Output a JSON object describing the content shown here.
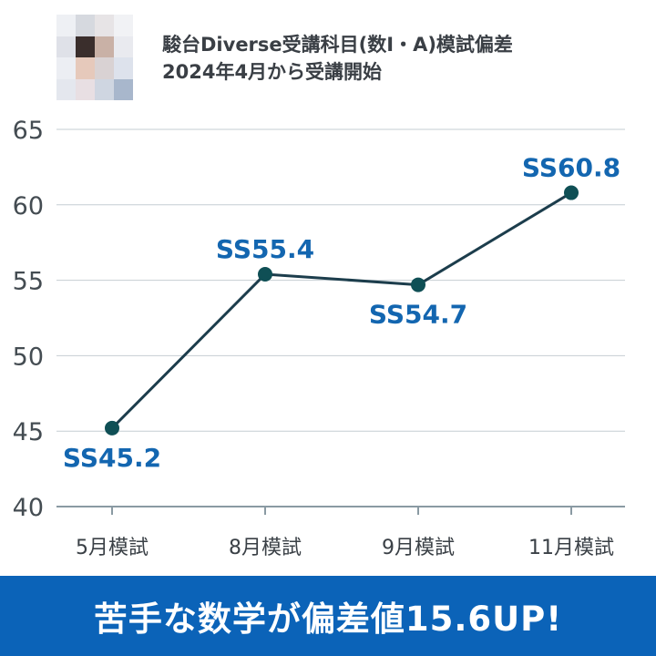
{
  "header": {
    "line1": "駿台Diverse受講科目(数Ⅰ・A)模試偏差",
    "line2": "2024年4月から受講開始"
  },
  "avatar": {
    "style": "pixelated-photo"
  },
  "chart_data": {
    "type": "line",
    "categories": [
      "5月模試",
      "8月模試",
      "9月模試",
      "11月模試"
    ],
    "values": [
      45.2,
      55.4,
      54.7,
      60.8
    ],
    "data_labels": [
      "SS45.2",
      "SS55.4",
      "SS54.7",
      "SS60.8"
    ],
    "ylim": [
      40,
      65
    ],
    "yticks": [
      40,
      45,
      50,
      55,
      60,
      65
    ],
    "grid": true,
    "line_color": "#1c3d4c",
    "point_color": "#0f4f55",
    "label_color": "#1366b0",
    "axis_color": "#8a9aa3",
    "tick_color": "#444c52"
  },
  "banner": {
    "text": "苦手な数学が偏差値15.6UP!",
    "background": "#0b63b8"
  }
}
